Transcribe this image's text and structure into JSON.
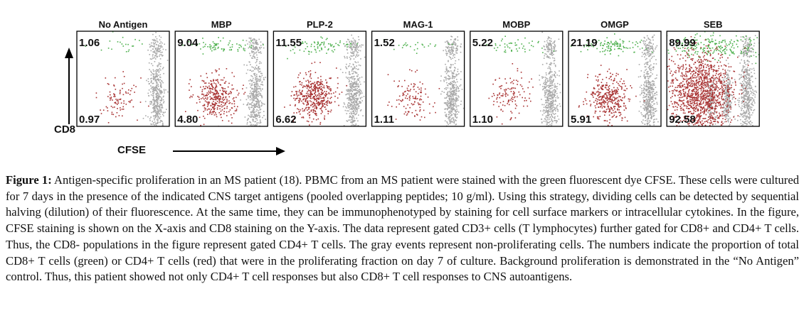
{
  "figure": {
    "y_axis_label": "CD8",
    "x_axis_label": "CFSE",
    "panels": [
      {
        "title": "No Antigen",
        "cd8_pct": "1.06",
        "cd4_pct": "0.97",
        "green": 0.35,
        "red": 0.35
      },
      {
        "title": "MBP",
        "cd8_pct": "9.04",
        "cd4_pct": "4.80",
        "green": 1.2,
        "red": 1.3
      },
      {
        "title": "PLP-2",
        "cd8_pct": "11.55",
        "cd4_pct": "6.62",
        "green": 1.3,
        "red": 1.7
      },
      {
        "title": "MAG-1",
        "cd8_pct": "1.52",
        "cd4_pct": "1.11",
        "green": 0.4,
        "red": 0.45
      },
      {
        "title": "MOBP",
        "cd8_pct": "5.22",
        "cd4_pct": "1.10",
        "green": 0.8,
        "red": 0.45
      },
      {
        "title": "OMGP",
        "cd8_pct": "21.19",
        "cd4_pct": "5.91",
        "green": 1.8,
        "red": 1.4
      },
      {
        "title": "SEB",
        "cd8_pct": "89.99",
        "cd4_pct": "92.58",
        "green": 4.0,
        "red": 5.0
      }
    ],
    "colors": {
      "cd8_proliferating": "#4cb04c",
      "cd4_proliferating": "#a83232",
      "non_proliferating": "#a8a8a8"
    }
  },
  "caption": {
    "label": "Figure 1:",
    "text": " Antigen-specific proliferation in an MS patient (18). PBMC from an MS patient were stained with the green fluorescent dye CFSE. These cells were cultured for 7 days in the presence of the indicated CNS target antigens (pooled overlapping peptides; 10 g/ml). Using this strategy, dividing cells can be detected by sequential halving (dilution) of their fluorescence. At the same time, they can be immunophenotyped by staining for cell surface markers or intracellular cytokines. In the figure, CFSE staining is shown on the X-axis and CD8 staining on the Y-axis. The data represent gated CD3+ cells (T lymphocytes) further gated for CD8+ and CD4+ T cells. Thus, the CD8- populations in the figure represent gated CD4+ T cells. The gray events represent non-proliferating cells. The numbers indicate the proportion of total CD8+ T cells (green) or CD4+ T cells (red) that were in the proliferating fraction on day 7 of culture. Background proliferation is demonstrated in the “No Antigen” control. Thus, this patient showed not only CD4+ T cell responses but also CD8+ T cell responses to CNS autoantigens."
  }
}
